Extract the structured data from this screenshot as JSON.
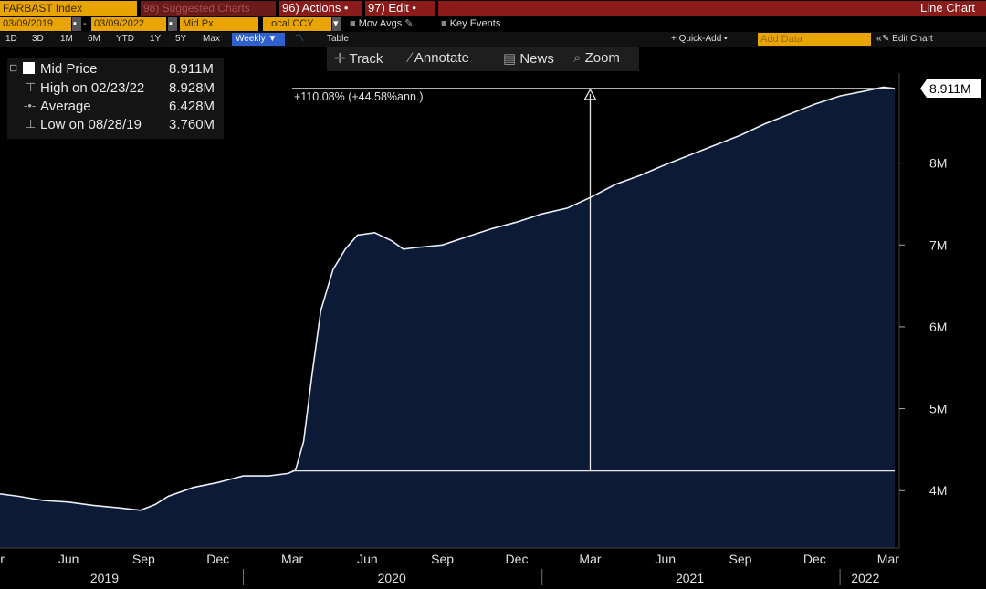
{
  "header": {
    "ticker": "FARBAST Index",
    "suggested": "98) Suggested Charts",
    "actions": "96) Actions •",
    "edit": "97) Edit •",
    "chart_kind": "Line Chart"
  },
  "controls": {
    "date_start": "03/09/2019",
    "date_sep": "-",
    "date_end": "03/09/2022",
    "field": "Mid Px",
    "currency": "Local CCY",
    "mov_avgs": "Mov Avgs",
    "key_events": "Key Events",
    "ranges": [
      "1D",
      "3D",
      "1M",
      "6M",
      "YTD",
      "1Y",
      "5Y",
      "Max"
    ],
    "period": "Weekly ▼",
    "table": "Table",
    "quick_add": "+ Quick-Add •",
    "add_data": "Add Data",
    "edit_chart": "Edit Chart"
  },
  "toolbar": {
    "track": "Track",
    "annotate": "Annotate",
    "news": "News",
    "zoom": "Zoom"
  },
  "legend": {
    "mid_label": "Mid Price",
    "mid_value": "8.911M",
    "high_label": "High on 02/23/22",
    "high_value": "8.928M",
    "avg_label": "Average",
    "avg_value": "6.428M",
    "low_label": "Low on 08/28/19",
    "low_value": "3.760M"
  },
  "chart_data": {
    "type": "area",
    "title": "",
    "xlabel": "",
    "ylabel": "",
    "ylim": [
      3.3,
      9.1
    ],
    "yticks": [
      4,
      5,
      6,
      7,
      8
    ],
    "ytick_labels": [
      "4M",
      "5M",
      "6M",
      "7M",
      "8M"
    ],
    "x_start": "2019-03-09",
    "x_end": "2022-03-09",
    "x_month_ticks": [
      {
        "label": "Mar",
        "date": "2019-03-01"
      },
      {
        "label": "Jun",
        "date": "2019-06-01"
      },
      {
        "label": "Sep",
        "date": "2019-09-01"
      },
      {
        "label": "Dec",
        "date": "2019-12-01"
      },
      {
        "label": "Mar",
        "date": "2020-03-01"
      },
      {
        "label": "Jun",
        "date": "2020-06-01"
      },
      {
        "label": "Sep",
        "date": "2020-09-01"
      },
      {
        "label": "Dec",
        "date": "2020-12-01"
      },
      {
        "label": "Mar",
        "date": "2021-03-01"
      },
      {
        "label": "Jun",
        "date": "2021-06-01"
      },
      {
        "label": "Sep",
        "date": "2021-09-01"
      },
      {
        "label": "Dec",
        "date": "2021-12-01"
      },
      {
        "label": "Mar",
        "date": "2022-03-01"
      }
    ],
    "x_year_labels": [
      {
        "label": "2019",
        "date": "2019-07-15"
      },
      {
        "label": "2020",
        "date": "2020-07-01"
      },
      {
        "label": "2021",
        "date": "2021-07-01"
      },
      {
        "label": "2022",
        "date": "2022-02-01"
      }
    ],
    "x_year_dividers": [
      "2020-01-01",
      "2021-01-01",
      "2022-01-01"
    ],
    "series": [
      {
        "points": [
          [
            "2019-03-09",
            3.96
          ],
          [
            "2019-04-01",
            3.93
          ],
          [
            "2019-05-01",
            3.88
          ],
          [
            "2019-06-01",
            3.86
          ],
          [
            "2019-07-01",
            3.82
          ],
          [
            "2019-08-01",
            3.79
          ],
          [
            "2019-08-28",
            3.76
          ],
          [
            "2019-09-15",
            3.83
          ],
          [
            "2019-10-01",
            3.93
          ],
          [
            "2019-11-01",
            4.04
          ],
          [
            "2019-12-01",
            4.1
          ],
          [
            "2020-01-01",
            4.18
          ],
          [
            "2020-02-01",
            4.18
          ],
          [
            "2020-02-25",
            4.21
          ],
          [
            "2020-03-05",
            4.25
          ],
          [
            "2020-03-15",
            4.6
          ],
          [
            "2020-03-25",
            5.4
          ],
          [
            "2020-04-05",
            6.2
          ],
          [
            "2020-04-20",
            6.7
          ],
          [
            "2020-05-05",
            6.95
          ],
          [
            "2020-05-20",
            7.12
          ],
          [
            "2020-06-10",
            7.15
          ],
          [
            "2020-07-01",
            7.05
          ],
          [
            "2020-07-15",
            6.95
          ],
          [
            "2020-08-01",
            6.97
          ],
          [
            "2020-09-01",
            7.0
          ],
          [
            "2020-10-01",
            7.1
          ],
          [
            "2020-11-01",
            7.2
          ],
          [
            "2020-12-01",
            7.28
          ],
          [
            "2021-01-01",
            7.38
          ],
          [
            "2021-02-01",
            7.45
          ],
          [
            "2021-03-01",
            7.58
          ],
          [
            "2021-04-01",
            7.74
          ],
          [
            "2021-05-01",
            7.85
          ],
          [
            "2021-06-01",
            7.98
          ],
          [
            "2021-07-01",
            8.1
          ],
          [
            "2021-08-01",
            8.22
          ],
          [
            "2021-09-01",
            8.34
          ],
          [
            "2021-10-01",
            8.48
          ],
          [
            "2021-11-01",
            8.6
          ],
          [
            "2021-12-01",
            8.72
          ],
          [
            "2022-01-01",
            8.82
          ],
          [
            "2022-02-01",
            8.88
          ],
          [
            "2022-02-23",
            8.928
          ],
          [
            "2022-03-09",
            8.911
          ]
        ]
      }
    ],
    "last_value_label": "8.911M",
    "annotation": {
      "text": "+110.08% (+44.58%ann.)",
      "from_value": 4.241,
      "to_value": 8.911,
      "measure_date": "2021-03-01"
    },
    "colors": {
      "fill": "#0d1a36",
      "line": "#e8eef8",
      "background": "#000000"
    }
  }
}
